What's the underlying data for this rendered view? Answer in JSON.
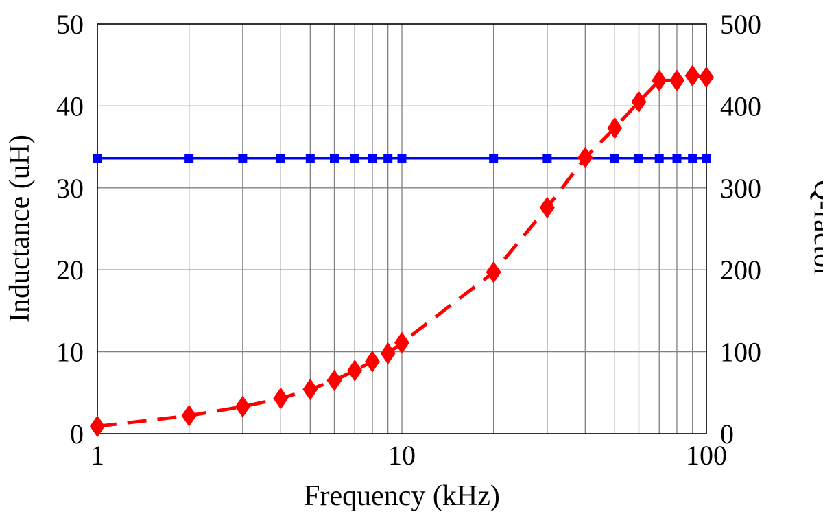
{
  "chart_data": {
    "type": "line",
    "xlabel": "Frequency (kHz)",
    "ylabel": "Inductance (uH)",
    "y2label": "Q-factor",
    "x_scale": "log",
    "xlim": [
      1,
      100
    ],
    "ylim": [
      0,
      50
    ],
    "y2lim": [
      0,
      500
    ],
    "x_ticks": [
      "1",
      "10",
      "100"
    ],
    "y_ticks": [
      "0",
      "10",
      "20",
      "30",
      "40",
      "50"
    ],
    "y2_ticks": [
      "0",
      "100",
      "200",
      "300",
      "400",
      "500"
    ],
    "grid": true,
    "series": [
      {
        "axis": "left",
        "color": "#0000ff",
        "line_style": "solid",
        "marker": "square",
        "x": [
          1,
          2,
          3,
          4,
          5,
          6,
          7,
          8,
          9,
          10,
          20,
          30,
          50,
          60,
          70,
          80,
          90,
          100
        ],
        "values": [
          33.6,
          33.6,
          33.6,
          33.6,
          33.6,
          33.6,
          33.6,
          33.6,
          33.6,
          33.6,
          33.6,
          33.6,
          33.6,
          33.6,
          33.6,
          33.6,
          33.6,
          33.6
        ]
      },
      {
        "axis": "right",
        "color": "#ff0000",
        "line_style": "dashed",
        "marker": "diamond",
        "x": [
          1,
          2,
          3,
          4,
          5,
          6,
          7,
          8,
          9,
          10,
          20,
          30,
          40,
          50,
          60,
          70,
          80,
          90,
          100
        ],
        "values": [
          9,
          22,
          33,
          43,
          54,
          65,
          77,
          88,
          98,
          111,
          197,
          276,
          337,
          373,
          405,
          431,
          431,
          437,
          435
        ]
      }
    ]
  }
}
